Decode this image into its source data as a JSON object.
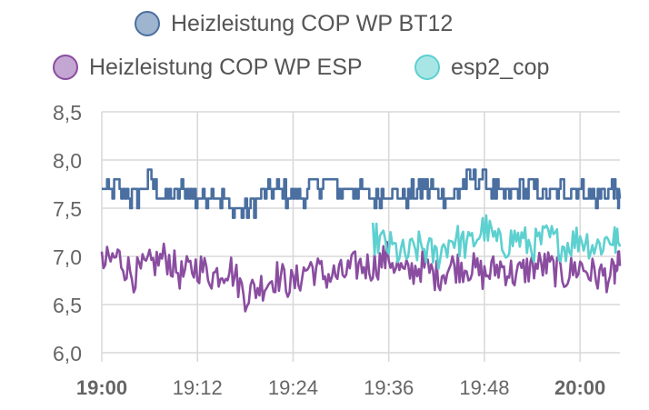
{
  "colors": {
    "bt12": "#4a6fa0",
    "esp": "#8a4da0",
    "esp2": "#5dd0d0",
    "grid": "#d8d8d8",
    "tick_text": "#666666"
  },
  "chart_data": {
    "type": "line",
    "xlabel": "",
    "ylabel": "",
    "ylim": [
      6.0,
      8.5
    ],
    "yticks": [
      "8,5",
      "8,0",
      "7,5",
      "7,0",
      "6,5",
      "6,0"
    ],
    "ytick_values": [
      8.5,
      8.0,
      7.5,
      7.0,
      6.5,
      6.0
    ],
    "x_range": [
      "19:00",
      "20:05"
    ],
    "xticks": [
      {
        "label": "19:00",
        "bold": true
      },
      {
        "label": "19:12",
        "bold": false
      },
      {
        "label": "19:24",
        "bold": false
      },
      {
        "label": "19:36",
        "bold": false
      },
      {
        "label": "19:48",
        "bold": false
      },
      {
        "label": "20:00",
        "bold": true
      }
    ],
    "grid": true,
    "legend_position": "top",
    "series": [
      {
        "name": "Heizleistung COP WP BT12",
        "color_key": "bt12",
        "points": [
          [
            "19:00",
            7.7
          ],
          [
            "19:02",
            7.7
          ],
          [
            "19:04",
            7.6
          ],
          [
            "19:06",
            7.8
          ],
          [
            "19:08",
            7.6
          ],
          [
            "19:10",
            7.7
          ],
          [
            "19:12",
            7.6
          ],
          [
            "19:14",
            7.7
          ],
          [
            "19:16",
            7.5
          ],
          [
            "19:18",
            7.5
          ],
          [
            "19:20",
            7.6
          ],
          [
            "19:22",
            7.7
          ],
          [
            "19:24",
            7.6
          ],
          [
            "19:26",
            7.7
          ],
          [
            "19:28",
            7.8
          ],
          [
            "19:30",
            7.7
          ],
          [
            "19:32",
            7.7
          ],
          [
            "19:34",
            7.6
          ],
          [
            "19:36",
            7.7
          ],
          [
            "19:38",
            7.6
          ],
          [
            "19:40",
            7.7
          ],
          [
            "19:42",
            7.7
          ],
          [
            "19:44",
            7.6
          ],
          [
            "19:46",
            7.8
          ],
          [
            "19:48",
            7.8
          ],
          [
            "19:50",
            7.6
          ],
          [
            "19:52",
            7.7
          ],
          [
            "19:54",
            7.7
          ],
          [
            "19:56",
            7.6
          ],
          [
            "19:58",
            7.7
          ],
          [
            "20:00",
            7.7
          ],
          [
            "20:02",
            7.6
          ],
          [
            "20:04",
            7.7
          ],
          [
            "20:05",
            7.6
          ]
        ]
      },
      {
        "name": "Heizleistung COP WP ESP",
        "color_key": "esp",
        "points": [
          [
            "19:00",
            6.9
          ],
          [
            "19:02",
            7.0
          ],
          [
            "19:04",
            6.8
          ],
          [
            "19:06",
            6.9
          ],
          [
            "19:08",
            7.0
          ],
          [
            "19:10",
            6.8
          ],
          [
            "19:12",
            6.9
          ],
          [
            "19:14",
            6.8
          ],
          [
            "19:16",
            6.9
          ],
          [
            "19:18",
            6.6
          ],
          [
            "19:20",
            6.7
          ],
          [
            "19:22",
            6.8
          ],
          [
            "19:24",
            6.7
          ],
          [
            "19:26",
            6.9
          ],
          [
            "19:28",
            6.8
          ],
          [
            "19:30",
            6.8
          ],
          [
            "19:32",
            6.9
          ],
          [
            "19:34",
            6.9
          ],
          [
            "19:36",
            7.0
          ],
          [
            "19:38",
            6.8
          ],
          [
            "19:40",
            6.9
          ],
          [
            "19:42",
            6.8
          ],
          [
            "19:44",
            6.9
          ],
          [
            "19:46",
            6.9
          ],
          [
            "19:48",
            6.8
          ],
          [
            "19:50",
            6.9
          ],
          [
            "19:52",
            6.8
          ],
          [
            "19:54",
            6.9
          ],
          [
            "19:56",
            6.9
          ],
          [
            "19:58",
            6.8
          ],
          [
            "20:00",
            6.9
          ],
          [
            "20:02",
            6.8
          ],
          [
            "20:04",
            6.8
          ],
          [
            "20:05",
            6.9
          ]
        ]
      },
      {
        "name": "esp2_cop",
        "color_key": "esp2",
        "points": [
          [
            "19:34",
            7.2
          ],
          [
            "19:36",
            7.1
          ],
          [
            "19:38",
            7.0
          ],
          [
            "19:40",
            7.1
          ],
          [
            "19:42",
            7.0
          ],
          [
            "19:44",
            7.2
          ],
          [
            "19:46",
            7.1
          ],
          [
            "19:48",
            7.3
          ],
          [
            "19:50",
            7.1
          ],
          [
            "19:52",
            7.2
          ],
          [
            "19:54",
            7.1
          ],
          [
            "19:56",
            7.2
          ],
          [
            "19:58",
            7.1
          ],
          [
            "20:00",
            7.2
          ],
          [
            "20:02",
            7.1
          ],
          [
            "20:04",
            7.2
          ],
          [
            "20:05",
            7.1
          ]
        ]
      }
    ]
  }
}
